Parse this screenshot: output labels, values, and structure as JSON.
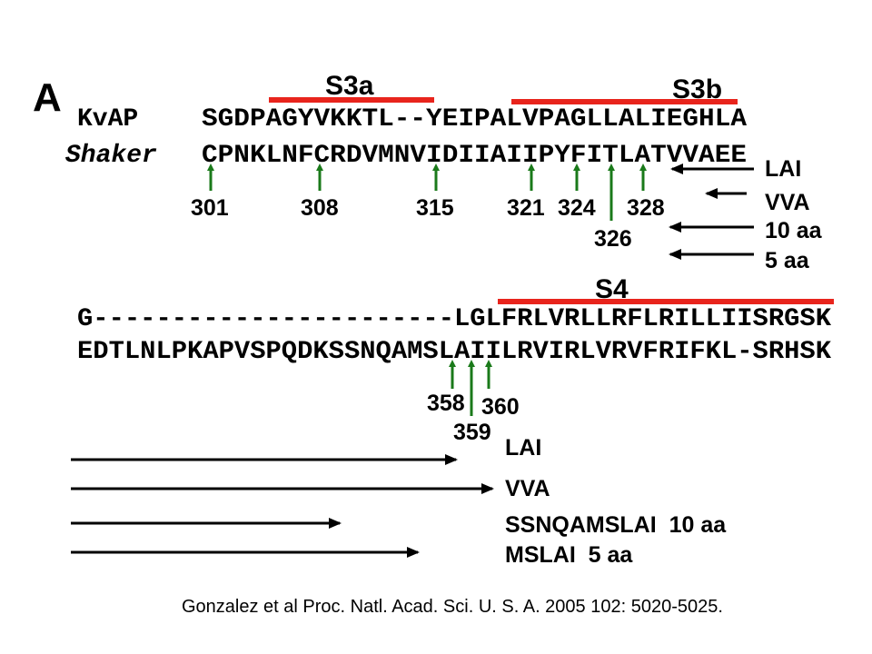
{
  "panel_label": "A",
  "segments": {
    "s3a": "S3a",
    "s3b": "S3b",
    "s4": "S4"
  },
  "block1": {
    "rows": [
      {
        "name": "KvAP",
        "sequence": "SGDPAGYVKKTL--YEIPALVPAGLLALIEGHLA"
      },
      {
        "name": "Shaker",
        "sequence": "CPNKLNFCRDVMNVIDIIAIIPYFITLATVVAEE"
      }
    ],
    "residues": [
      "301",
      "308",
      "315",
      "321",
      "324",
      "328",
      "326"
    ],
    "constructs": [
      "LAI",
      "VVA",
      "10 aa",
      "5 aa"
    ]
  },
  "block2": {
    "rows": [
      "G-----------------------LGLFRLVRLLRFLRILLIISRGSK",
      "EDTLNLPKAPVSPQDKSSNQAMSLAIILRVIRLVRVFRIFKL-SRHSK"
    ],
    "residues": [
      "358",
      "360",
      "359"
    ],
    "constructs": [
      "LAI",
      "VVA",
      "SSNQAMSLAI  10 aa",
      "MSLAI  5 aa"
    ]
  },
  "citation": "Gonzalez et al Proc. Natl. Acad. Sci. U. S. A. 2005 102: 5020-5025."
}
